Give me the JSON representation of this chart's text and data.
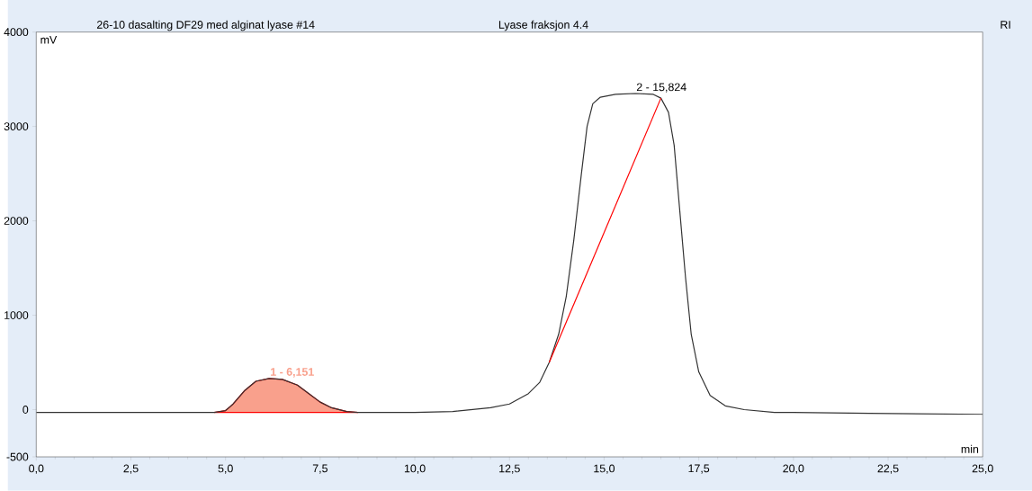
{
  "chart_data": {
    "type": "line",
    "title": "26-10 dasalting DF29 med alginat lyase #14",
    "subtitle": "Lyase fraksjon 4.4",
    "xlabel": "min",
    "ylabel": "mV",
    "annotations": [
      "RI",
      {
        "text": "1 - 6,151",
        "x": 6.151,
        "y": 330
      },
      {
        "text": "2 - 15,824",
        "x": 15.824,
        "y": 3350
      }
    ],
    "xlim": [
      0,
      25
    ],
    "ylim": [
      -500,
      4000
    ],
    "xticks": [
      {
        "value": 0,
        "label": "0,0"
      },
      {
        "value": 2.5,
        "label": "2,5"
      },
      {
        "value": 5,
        "label": "5,0"
      },
      {
        "value": 7.5,
        "label": "7,5"
      },
      {
        "value": 10,
        "label": "10,0"
      },
      {
        "value": 12.5,
        "label": "12,5"
      },
      {
        "value": 15,
        "label": "15,0"
      },
      {
        "value": 17.5,
        "label": "17,5"
      },
      {
        "value": 20,
        "label": "20,0"
      },
      {
        "value": 22.5,
        "label": "22,5"
      },
      {
        "value": 25,
        "label": "25,0"
      }
    ],
    "yticks": [
      -500,
      0,
      1000,
      2000,
      3000,
      4000
    ],
    "series": [
      {
        "type": "area",
        "color": "#f9a08c",
        "x": [
          4.7,
          5.0,
          5.2,
          5.5,
          5.8,
          6.151,
          6.5,
          6.9,
          7.2,
          7.5,
          7.8,
          8.2,
          8.5
        ],
        "values": [
          -30,
          -10,
          60,
          200,
          300,
          330,
          320,
          260,
          170,
          80,
          20,
          -20,
          -30
        ]
      },
      {
        "color": "#333333",
        "x": [
          0,
          2,
          4,
          4.7,
          5.0,
          5.2,
          5.5,
          5.8,
          6.151,
          6.5,
          6.9,
          7.2,
          7.5,
          7.8,
          8.2,
          8.5,
          9,
          10,
          11,
          12,
          12.5,
          13,
          13.3,
          13.55,
          13.8,
          14.0,
          14.2,
          14.4,
          14.55,
          14.7,
          14.9,
          15.3,
          15.824,
          16.3,
          16.5,
          16.7,
          16.85,
          17.0,
          17.15,
          17.3,
          17.5,
          17.8,
          18.2,
          18.7,
          19.5,
          20,
          22,
          25
        ],
        "values": [
          -30,
          -30,
          -30,
          -30,
          -10,
          60,
          200,
          300,
          330,
          320,
          260,
          170,
          80,
          20,
          -20,
          -30,
          -30,
          -30,
          -20,
          20,
          60,
          170,
          290,
          500,
          800,
          1200,
          1800,
          2500,
          3000,
          3240,
          3310,
          3340,
          3350,
          3340,
          3300,
          3150,
          2800,
          2100,
          1400,
          800,
          400,
          150,
          40,
          0,
          -30,
          -30,
          -40,
          -50
        ]
      },
      {
        "color": "#ff0000",
        "x": [
          13.55,
          16.5
        ],
        "values": [
          500,
          3300
        ]
      }
    ]
  }
}
